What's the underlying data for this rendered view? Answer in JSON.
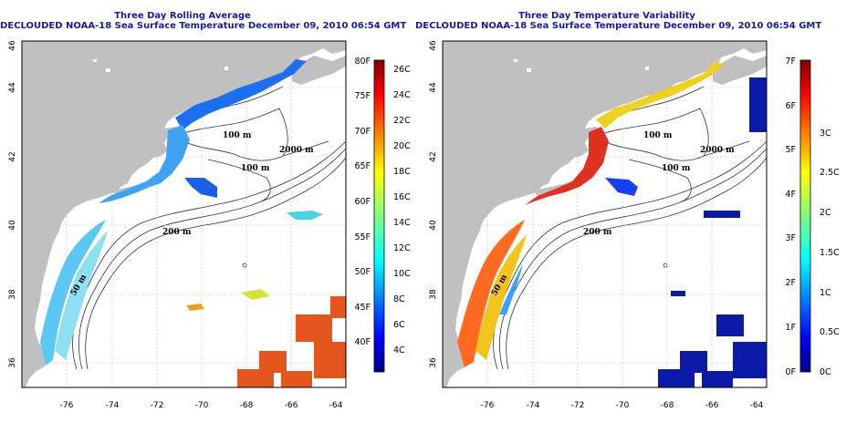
{
  "left": {
    "title1": "Three Day Rolling Average",
    "title2": "DECLOUDED NOAA-18 Sea Surface Temperature December 09, 2010 06:54 GMT",
    "colorbar_f": [
      "80F",
      "75F",
      "70F",
      "65F",
      "60F",
      "55F",
      "50F",
      "45F",
      "40F"
    ],
    "colorbar_c": [
      "26C",
      "24C",
      "22C",
      "20C",
      "18C",
      "16C",
      "14C",
      "12C",
      "10C",
      "8C",
      "6C",
      "4C"
    ]
  },
  "right": {
    "title1": "Three Day Temperature Variability",
    "title2": "DECLOUDED NOAA-18 Sea Surface Temperature December 09, 2010 06:54 GMT",
    "colorbar_f": [
      "7F",
      "6F",
      "5F",
      "4F",
      "3F",
      "2F",
      "1F",
      "0F"
    ],
    "colorbar_c": [
      "3C",
      "2.5C",
      "2C",
      "1.5C",
      "1C",
      "0.5C",
      "0C"
    ]
  },
  "axes": {
    "lon_ticks": [
      "-76",
      "-74",
      "-72",
      "-70",
      "-68",
      "-66",
      "-64"
    ],
    "lat_ticks": [
      "36",
      "38",
      "40",
      "42",
      "44",
      "46"
    ]
  },
  "contour_labels": [
    "100 m",
    "2000 m",
    "100 m",
    "200 m",
    "200 m",
    "200 m",
    "50 m"
  ],
  "colors": {
    "title": "#1a1aa0",
    "land": "#c0c0c0",
    "ocean": "#ffffff"
  }
}
